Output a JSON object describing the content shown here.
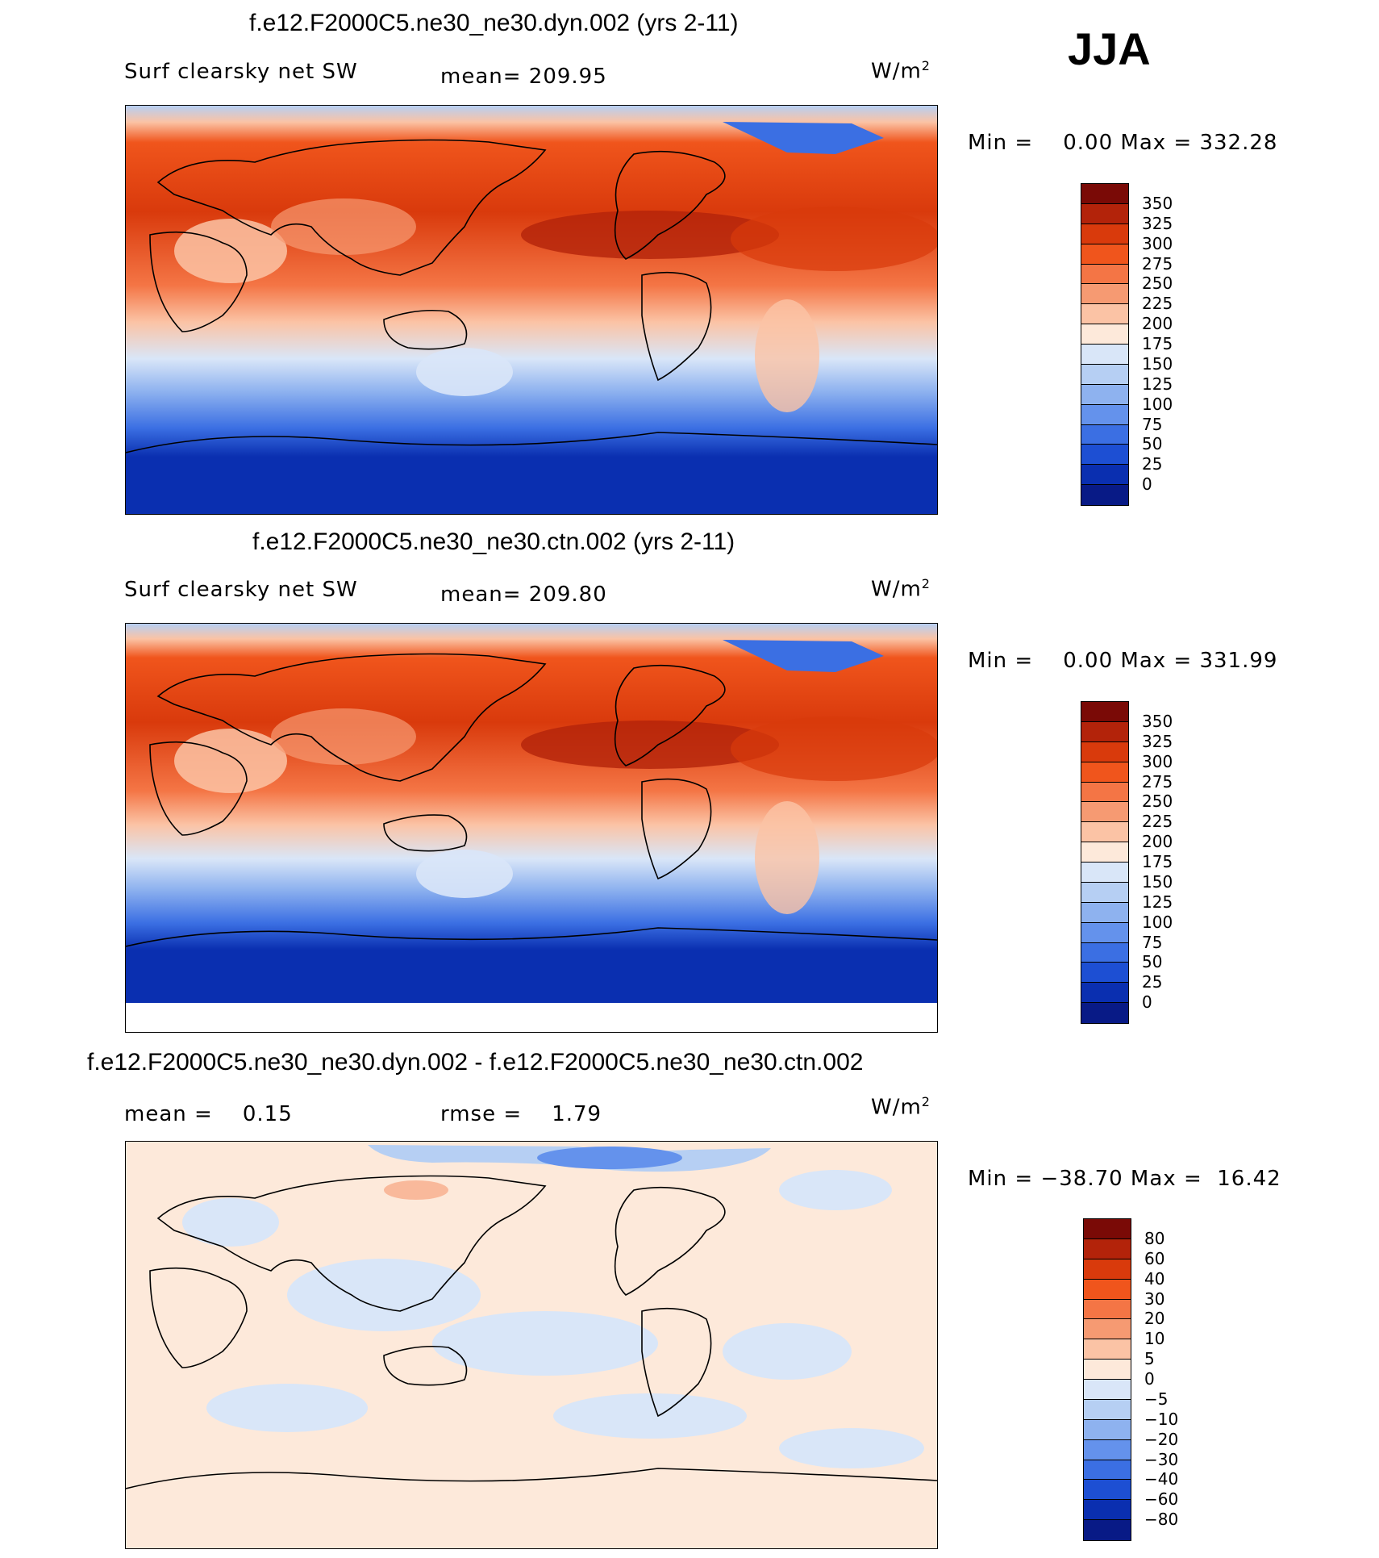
{
  "season": "JJA",
  "panels": [
    {
      "title": "f.e12.F2000C5.ne30_ne30.dyn.002 (yrs 2-11)",
      "variable": "Surf clearsky net SW",
      "stat_text": "mean= 209.95",
      "stat2_text": "",
      "units_base": "W/m",
      "units_exp": "2",
      "minmax": "Min =    0.00 Max = 332.28",
      "colorbar": {
        "labels": [
          "350",
          "325",
          "300",
          "275",
          "250",
          "225",
          "200",
          "175",
          "150",
          "125",
          "100",
          "75",
          "50",
          "25",
          "0"
        ],
        "colors": [
          "#7a0a06",
          "#b3230a",
          "#d93a0c",
          "#f0551c",
          "#f47545",
          "#f69a72",
          "#fbc3a5",
          "#fde9da",
          "#d9e6f8",
          "#b6cff3",
          "#8eb2ef",
          "#6492ec",
          "#3b6fe3",
          "#1d4fd3",
          "#0a2fb0",
          "#081a86"
        ]
      }
    },
    {
      "title": "f.e12.F2000C5.ne30_ne30.ctn.002 (yrs 2-11)",
      "variable": "Surf clearsky net SW",
      "stat_text": "mean= 209.80",
      "stat2_text": "",
      "units_base": "W/m",
      "units_exp": "2",
      "minmax": "Min =    0.00 Max = 331.99",
      "colorbar": {
        "labels": [
          "350",
          "325",
          "300",
          "275",
          "250",
          "225",
          "200",
          "175",
          "150",
          "125",
          "100",
          "75",
          "50",
          "25",
          "0"
        ],
        "colors": [
          "#7a0a06",
          "#b3230a",
          "#d93a0c",
          "#f0551c",
          "#f47545",
          "#f69a72",
          "#fbc3a5",
          "#fde9da",
          "#d9e6f8",
          "#b6cff3",
          "#8eb2ef",
          "#6492ec",
          "#3b6fe3",
          "#1d4fd3",
          "#0a2fb0",
          "#081a86"
        ]
      }
    },
    {
      "title": "f.e12.F2000C5.ne30_ne30.dyn.002 - f.e12.F2000C5.ne30_ne30.ctn.002",
      "variable": "",
      "stat_text": "mean =    0.15",
      "stat2_text": "rmse =    1.79",
      "units_base": "W/m",
      "units_exp": "2",
      "minmax": "Min = −38.70 Max =  16.42",
      "colorbar": {
        "labels": [
          "80",
          "60",
          "40",
          "30",
          "20",
          "10",
          "5",
          "0",
          "−5",
          "−10",
          "−20",
          "−30",
          "−40",
          "−60",
          "−80"
        ],
        "colors": [
          "#7a0a06",
          "#b3230a",
          "#d93a0c",
          "#f0551c",
          "#f47545",
          "#f69a72",
          "#fbc3a5",
          "#fde9da",
          "#d9e6f8",
          "#b6cff3",
          "#8eb2ef",
          "#6492ec",
          "#3b6fe3",
          "#1d4fd3",
          "#0a2fb0",
          "#081a86"
        ]
      }
    }
  ]
}
